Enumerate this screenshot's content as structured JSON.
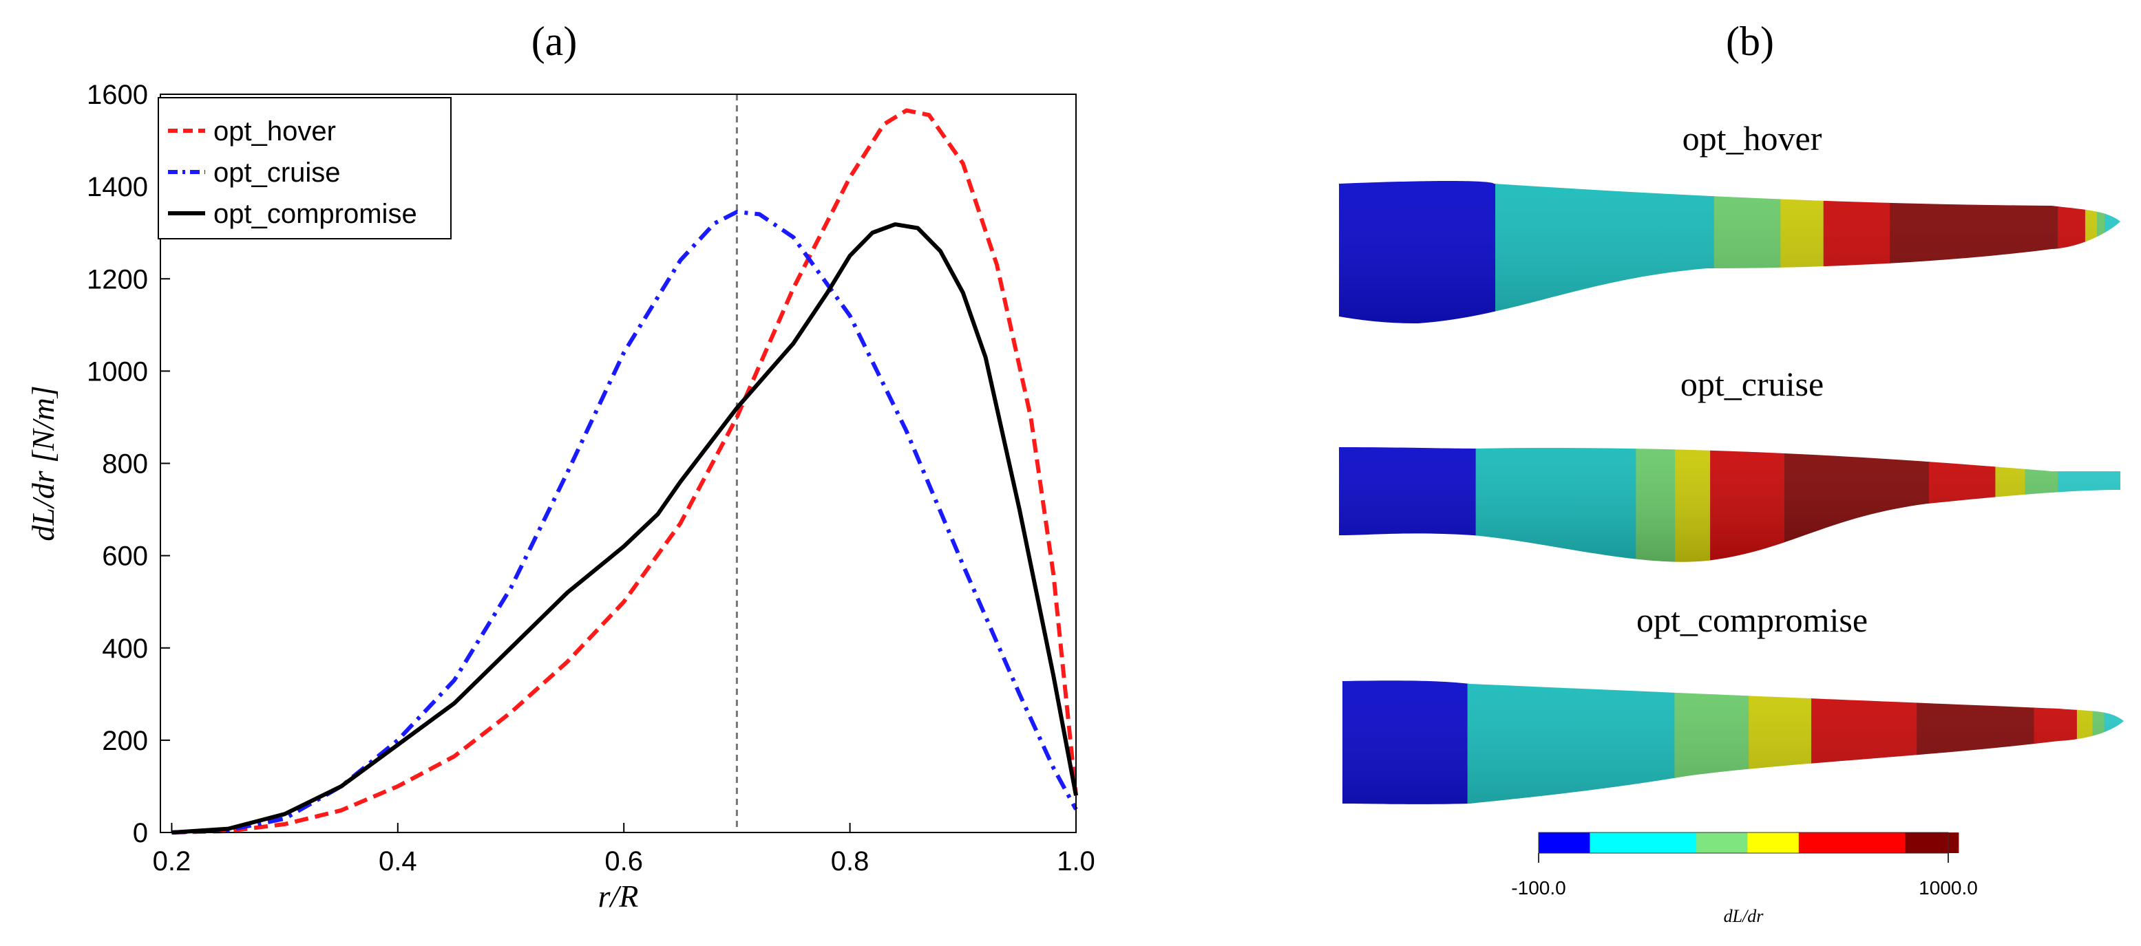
{
  "panels": {
    "a": {
      "label": "(a)"
    },
    "b": {
      "label": "(b)"
    }
  },
  "chart_data": [
    {
      "type": "line",
      "panel": "(a)",
      "xlabel": "r/R",
      "ylabel": "dL/dr [N/m]",
      "xlim": [
        0.19,
        1.0
      ],
      "ylim": [
        0,
        1600
      ],
      "xticks": [
        0.2,
        0.4,
        0.6,
        0.8,
        1.0
      ],
      "xtick_labels": [
        "0.2",
        "0.4",
        "0.6",
        "0.8",
        "1.0"
      ],
      "yticks": [
        0,
        200,
        400,
        600,
        800,
        1000,
        1200,
        1400,
        1600
      ],
      "grid": false,
      "legend": "top-left",
      "reference_line": {
        "x": 0.7,
        "style": "dashed",
        "color": "#777777"
      },
      "series": [
        {
          "name": "opt_hover",
          "color": "#ff1a1a",
          "dash": "dashed",
          "points": [
            [
              0.2,
              0
            ],
            [
              0.25,
              3
            ],
            [
              0.3,
              18
            ],
            [
              0.35,
              48
            ],
            [
              0.4,
              100
            ],
            [
              0.45,
              165
            ],
            [
              0.5,
              260
            ],
            [
              0.55,
              370
            ],
            [
              0.6,
              500
            ],
            [
              0.65,
              670
            ],
            [
              0.7,
              900
            ],
            [
              0.75,
              1180
            ],
            [
              0.8,
              1420
            ],
            [
              0.83,
              1535
            ],
            [
              0.85,
              1565
            ],
            [
              0.87,
              1555
            ],
            [
              0.9,
              1450
            ],
            [
              0.93,
              1230
            ],
            [
              0.96,
              900
            ],
            [
              0.98,
              560
            ],
            [
              1.0,
              80
            ]
          ]
        },
        {
          "name": "opt_cruise",
          "color": "#1a1aff",
          "dash": "dashdot",
          "points": [
            [
              0.2,
              0
            ],
            [
              0.25,
              5
            ],
            [
              0.3,
              30
            ],
            [
              0.35,
              100
            ],
            [
              0.4,
              200
            ],
            [
              0.45,
              330
            ],
            [
              0.5,
              530
            ],
            [
              0.55,
              780
            ],
            [
              0.6,
              1040
            ],
            [
              0.65,
              1240
            ],
            [
              0.68,
              1320
            ],
            [
              0.7,
              1345
            ],
            [
              0.72,
              1340
            ],
            [
              0.75,
              1290
            ],
            [
              0.8,
              1120
            ],
            [
              0.85,
              870
            ],
            [
              0.9,
              580
            ],
            [
              0.95,
              300
            ],
            [
              0.98,
              140
            ],
            [
              1.0,
              50
            ]
          ]
        },
        {
          "name": "opt_compromise",
          "color": "#000000",
          "dash": "solid",
          "points": [
            [
              0.2,
              0
            ],
            [
              0.25,
              8
            ],
            [
              0.3,
              40
            ],
            [
              0.35,
              100
            ],
            [
              0.4,
              190
            ],
            [
              0.45,
              280
            ],
            [
              0.5,
              400
            ],
            [
              0.55,
              520
            ],
            [
              0.6,
              620
            ],
            [
              0.63,
              690
            ],
            [
              0.65,
              760
            ],
            [
              0.7,
              920
            ],
            [
              0.75,
              1060
            ],
            [
              0.78,
              1170
            ],
            [
              0.8,
              1250
            ],
            [
              0.82,
              1300
            ],
            [
              0.84,
              1318
            ],
            [
              0.86,
              1310
            ],
            [
              0.88,
              1260
            ],
            [
              0.9,
              1170
            ],
            [
              0.92,
              1030
            ],
            [
              0.95,
              700
            ],
            [
              0.98,
              340
            ],
            [
              1.0,
              80
            ]
          ]
        }
      ]
    },
    {
      "type": "heatmap",
      "panel": "(b)",
      "colorbar": {
        "min_label": "-100.0",
        "max_label": "1000.0",
        "title": "dL/dr",
        "colors": [
          "#0000ff",
          "#00ffff",
          "#7fe57f",
          "#ffff00",
          "#ff0000",
          "#800000"
        ]
      },
      "blades": [
        {
          "name": "opt_hover",
          "bands": [
            {
              "f": 0.2,
              "c": "#0000cc"
            },
            {
              "f": 0.28,
              "c": "#11bbbb"
            },
            {
              "f": 0.085,
              "c": "#66cc66"
            },
            {
              "f": 0.055,
              "c": "#cccc00"
            },
            {
              "f": 0.085,
              "c": "#cc0000"
            },
            {
              "f": 0.215,
              "c": "#800000"
            },
            {
              "f": 0.035,
              "c": "#cc0000"
            },
            {
              "f": 0.015,
              "c": "#cccc00"
            },
            {
              "f": 0.01,
              "c": "#66cc66"
            },
            {
              "f": 0.025,
              "c": "#22cccc"
            }
          ]
        },
        {
          "name": "opt_cruise",
          "bands": [
            {
              "f": 0.175,
              "c": "#0000cc"
            },
            {
              "f": 0.205,
              "c": "#11bbbb"
            },
            {
              "f": 0.05,
              "c": "#66cc66"
            },
            {
              "f": 0.045,
              "c": "#cccc00"
            },
            {
              "f": 0.095,
              "c": "#cc0000"
            },
            {
              "f": 0.185,
              "c": "#800000"
            },
            {
              "f": 0.085,
              "c": "#cc0000"
            },
            {
              "f": 0.038,
              "c": "#cccc00"
            },
            {
              "f": 0.042,
              "c": "#66cc66"
            },
            {
              "f": 0.08,
              "c": "#22cccc"
            }
          ]
        },
        {
          "name": "opt_compromise",
          "bands": [
            {
              "f": 0.16,
              "c": "#0000cc"
            },
            {
              "f": 0.265,
              "c": "#11bbbb"
            },
            {
              "f": 0.095,
              "c": "#66cc66"
            },
            {
              "f": 0.08,
              "c": "#cccc00"
            },
            {
              "f": 0.135,
              "c": "#cc0000"
            },
            {
              "f": 0.15,
              "c": "#800000"
            },
            {
              "f": 0.055,
              "c": "#cc0000"
            },
            {
              "f": 0.02,
              "c": "#cccc00"
            },
            {
              "f": 0.015,
              "c": "#66cc66"
            },
            {
              "f": 0.025,
              "c": "#22cccc"
            }
          ]
        }
      ]
    }
  ]
}
